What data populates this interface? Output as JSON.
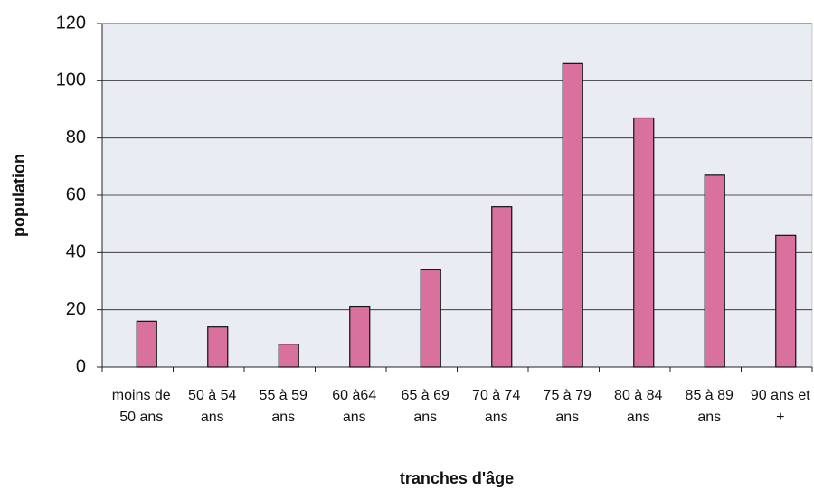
{
  "chart_data": {
    "type": "bar",
    "categories": [
      "moins de 50 ans",
      "50 à 54 ans",
      "55 à 59 ans",
      "60 à64 ans",
      "65 à 69 ans",
      "70 à 74 ans",
      "75 à 79 ans",
      "80 à 84 ans",
      "85 à 89 ans",
      "90 ans et +"
    ],
    "values": [
      16,
      14,
      8,
      21,
      34,
      56,
      106,
      87,
      67,
      46
    ],
    "color": "#d9719f",
    "ylim": [
      0,
      120
    ],
    "yticks": [
      0,
      20,
      40,
      60,
      80,
      100,
      120
    ],
    "grid": true,
    "x_label": "tranches d'âge",
    "y_label": "population"
  }
}
